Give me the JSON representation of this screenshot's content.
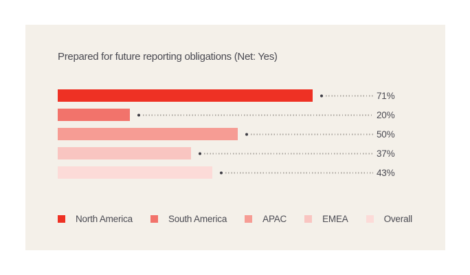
{
  "panel": {
    "background": "#f4f0e9"
  },
  "chart_data": {
    "type": "bar",
    "orientation": "horizontal",
    "title": "Prepared for future reporting obligations (Net: Yes)",
    "categories": [
      "North America",
      "South America",
      "APAC",
      "EMEA",
      "Overall"
    ],
    "values": [
      71,
      20,
      50,
      37,
      43
    ],
    "value_labels": [
      "71%",
      "20%",
      "50%",
      "37%",
      "43%"
    ],
    "colors": [
      "#ee3124",
      "#f2736b",
      "#f69c94",
      "#f9c5c1",
      "#fcdbd8"
    ],
    "xlim": [
      0,
      100
    ],
    "grid": false,
    "legend_position": "bottom",
    "leader_dot_color": "#3e3d45",
    "leader_line_color": "#a5a099",
    "text_color": "#4a4a52"
  },
  "legend": {
    "items": [
      {
        "label": "North America",
        "color": "#ee3124"
      },
      {
        "label": "South America",
        "color": "#f2736b"
      },
      {
        "label": "APAC",
        "color": "#f69c94"
      },
      {
        "label": "EMEA",
        "color": "#f9c5c1"
      },
      {
        "label": "Overall",
        "color": "#fcdbd8"
      }
    ]
  }
}
